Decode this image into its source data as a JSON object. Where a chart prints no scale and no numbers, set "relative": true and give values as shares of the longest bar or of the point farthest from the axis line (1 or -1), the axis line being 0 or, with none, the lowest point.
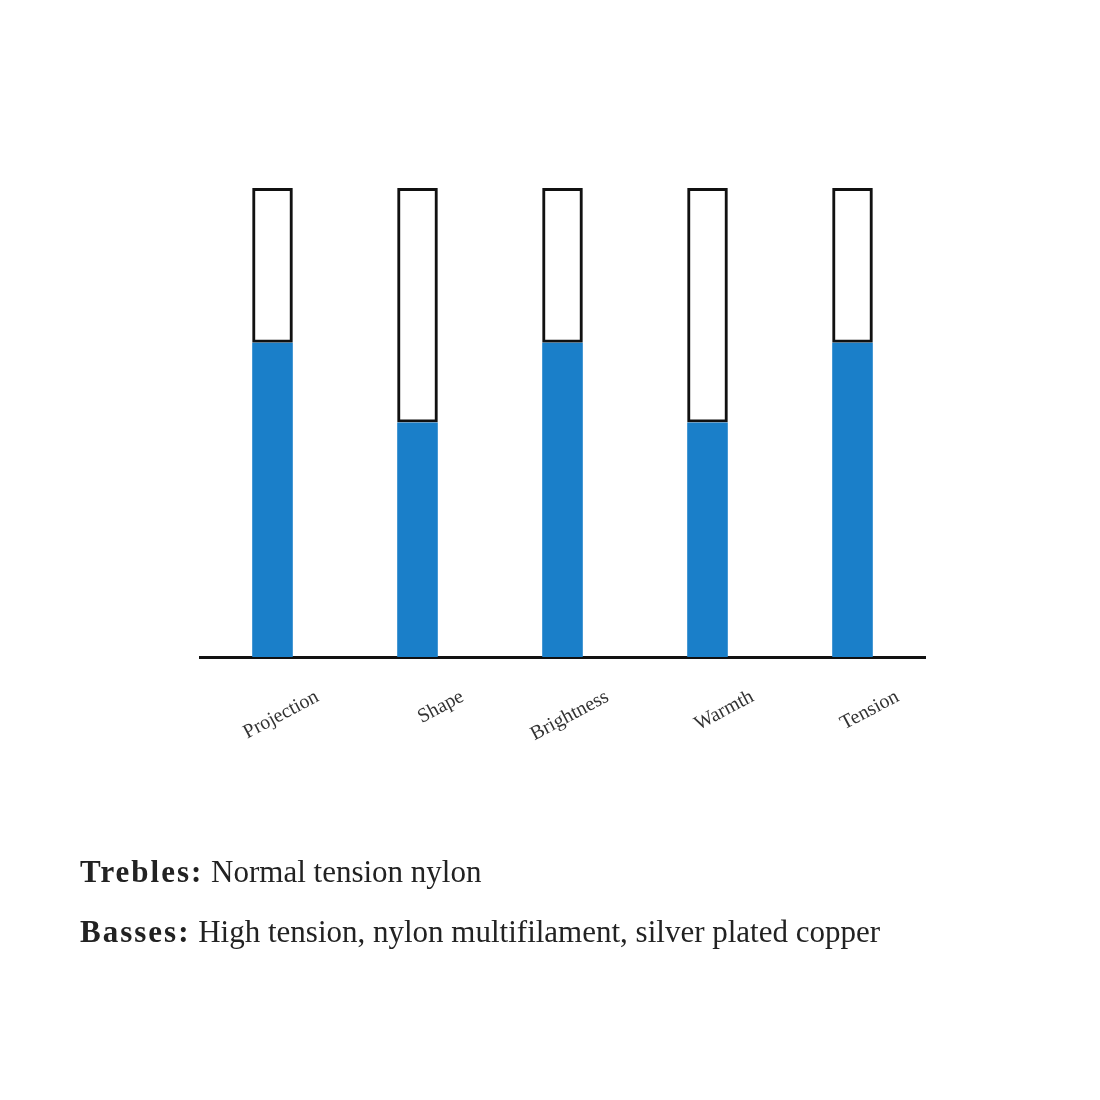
{
  "chart_data": {
    "type": "bar",
    "relative": true,
    "stacked": true,
    "categories": [
      "Projection",
      "Shape",
      "Brightness",
      "Warmth",
      "Tension"
    ],
    "series": [
      {
        "color": "#1a7fc9",
        "values": [
          0.67,
          0.5,
          0.67,
          0.5,
          0.67
        ]
      },
      {
        "color": "#111111",
        "values": [
          0.33,
          0.5,
          0.33,
          0.5,
          0.33
        ]
      }
    ],
    "annotations": [
      "Trebles: Normal tension nylon",
      "Basses: High tension, nylon multifilament, silver plated copper"
    ]
  }
}
